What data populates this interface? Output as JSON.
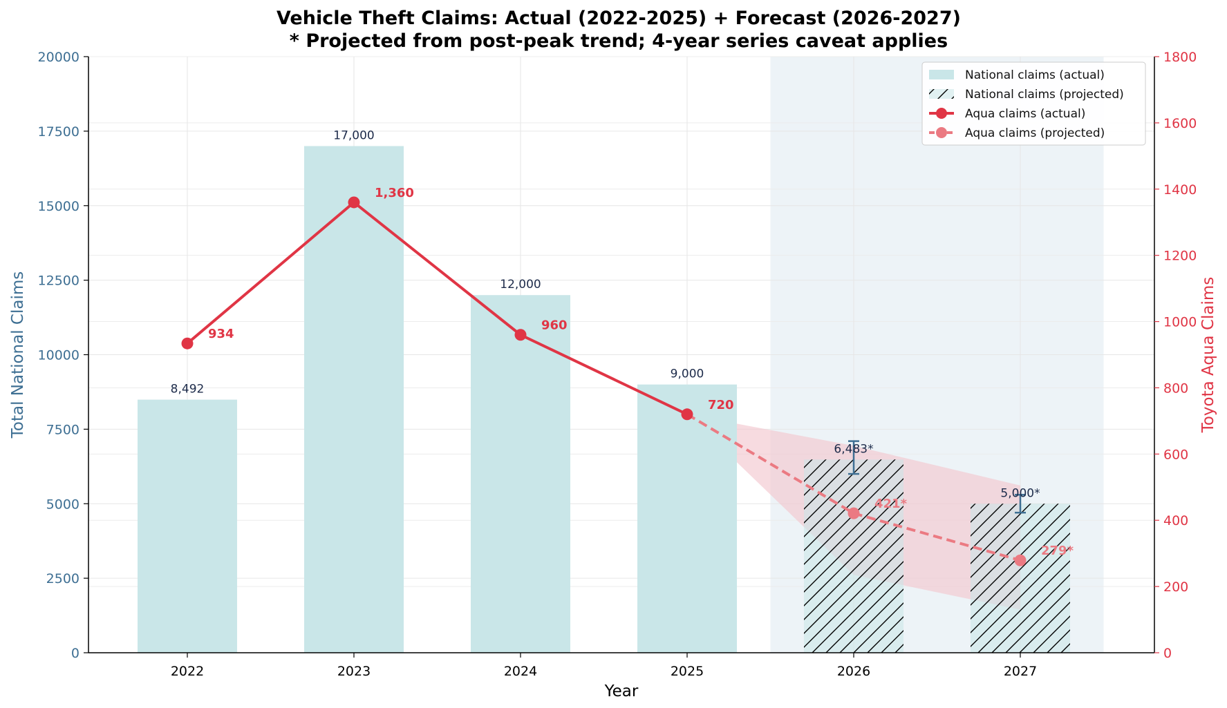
{
  "chart_data": {
    "type": "bar+line",
    "title": [
      "Vehicle Theft Claims: Actual (2022-2025) + Forecast (2026-2027)",
      "* Projected from post-peak trend; 4-year series caveat applies"
    ],
    "xlabel": "Year",
    "ylabel_left": "Total National Claims",
    "ylabel_right": "Toyota Aqua Claims",
    "ylim_left": [
      0,
      20000
    ],
    "ylim_right": [
      0,
      1800
    ],
    "yticks_left": [
      0,
      2500,
      5000,
      7500,
      10000,
      12500,
      15000,
      17500,
      20000
    ],
    "yticks_right": [
      0,
      200,
      400,
      600,
      800,
      1000,
      1200,
      1400,
      1600,
      1800
    ],
    "categories": [
      "2022",
      "2023",
      "2024",
      "2025",
      "2026",
      "2027"
    ],
    "forecast_start_index": 4,
    "national": {
      "values": [
        8492,
        17000,
        12000,
        9000,
        6483,
        5000
      ],
      "labels": [
        "8,492",
        "17,000",
        "12,000",
        "9,000",
        "6,483*",
        "5,000*"
      ],
      "projected_error": [
        [
          6000,
          7100
        ],
        [
          4700,
          5300
        ]
      ]
    },
    "aqua": {
      "values": [
        934,
        1360,
        960,
        720,
        421,
        279
      ],
      "labels": [
        "934",
        "1,360",
        "960",
        "720",
        "421*",
        "279*"
      ],
      "projected_band": [
        [
          720,
          720
        ],
        [
          235,
          625
        ],
        [
          130,
          505
        ]
      ]
    },
    "legend": [
      "National claims (actual)",
      "National claims (projected)",
      "Aqua claims (actual)",
      "Aqua claims (projected)"
    ],
    "legend_position": "top-right",
    "colors": {
      "bar": "#c9e6e8",
      "aqua": "#e03545",
      "aqua_projected": "#eb7a82",
      "band": "#f3c8cf",
      "forecast_bg": "#edf3f7",
      "left_axis": "#3e6f93",
      "right_axis": "#e03545"
    }
  }
}
